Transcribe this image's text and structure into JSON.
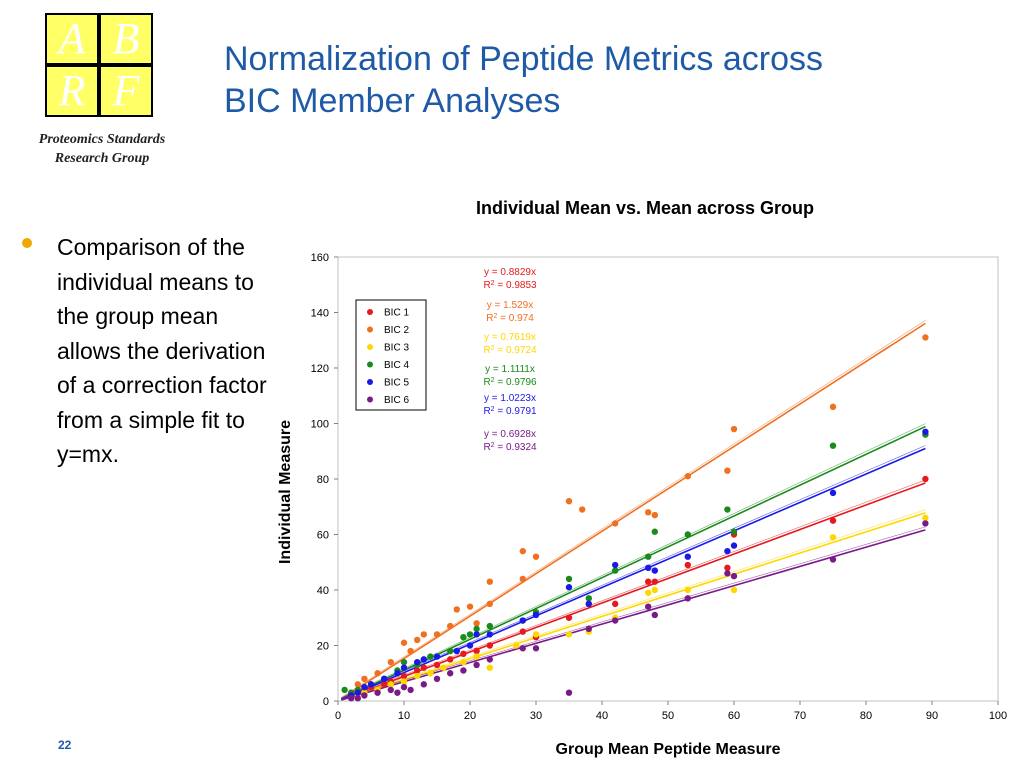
{
  "logo": {
    "letters": [
      "A",
      "B",
      "R",
      "F"
    ],
    "caption": [
      "Proteomics Standards",
      "Research Group"
    ]
  },
  "slide": {
    "title_lines": [
      "Normalization of Peptide Metrics across",
      "BIC Member Analyses"
    ],
    "bullet": "Comparison of the individual means to the group mean allows the derivation of a correction factor from a simple fit to y=mx.",
    "page_number": "22",
    "bullet_color": "#f0a800",
    "title_color": "#1f5aa6"
  },
  "chart_data": {
    "type": "scatter",
    "title": "Individual Mean vs. Mean across Group",
    "xlabel": "Group Mean Peptide Measure",
    "ylabel": "Individual Measure",
    "xlim": [
      0,
      100
    ],
    "ylim": [
      0,
      160
    ],
    "xticks": [
      "0",
      "10",
      "20",
      "30",
      "40",
      "50",
      "60",
      "70",
      "80",
      "90",
      "100"
    ],
    "yticks": [
      "0",
      "20",
      "40",
      "60",
      "80",
      "100",
      "120",
      "140",
      "160"
    ],
    "grid": false,
    "legend_position": "top-left",
    "series": [
      {
        "name": "BIC 1",
        "color": "#e41a1c",
        "slope": 0.8829,
        "eq": "y = 0.8829x",
        "r2": "0.9853",
        "points": [
          [
            2,
            2
          ],
          [
            3,
            3
          ],
          [
            4,
            4
          ],
          [
            5,
            5
          ],
          [
            7,
            6
          ],
          [
            8,
            7
          ],
          [
            10,
            9
          ],
          [
            12,
            11
          ],
          [
            13,
            12
          ],
          [
            15,
            13
          ],
          [
            17,
            15
          ],
          [
            19,
            17
          ],
          [
            21,
            18
          ],
          [
            23,
            20
          ],
          [
            28,
            25
          ],
          [
            30,
            23
          ],
          [
            35,
            30
          ],
          [
            38,
            35
          ],
          [
            42,
            35
          ],
          [
            47,
            43
          ],
          [
            48,
            43
          ],
          [
            53,
            49
          ],
          [
            59,
            48
          ],
          [
            60,
            60
          ],
          [
            75,
            65
          ],
          [
            89,
            80
          ]
        ]
      },
      {
        "name": "BIC 2",
        "color": "#f07020",
        "slope": 1.529,
        "eq": "y = 1.529x",
        "r2": "0.974",
        "points": [
          [
            2,
            3
          ],
          [
            3,
            6
          ],
          [
            4,
            8
          ],
          [
            6,
            10
          ],
          [
            8,
            14
          ],
          [
            10,
            21
          ],
          [
            11,
            18
          ],
          [
            12,
            22
          ],
          [
            13,
            24
          ],
          [
            15,
            24
          ],
          [
            17,
            27
          ],
          [
            18,
            33
          ],
          [
            20,
            34
          ],
          [
            21,
            28
          ],
          [
            23,
            43
          ],
          [
            23,
            35
          ],
          [
            28,
            44
          ],
          [
            28,
            54
          ],
          [
            30,
            52
          ],
          [
            35,
            72
          ],
          [
            37,
            69
          ],
          [
            42,
            64
          ],
          [
            47,
            68
          ],
          [
            48,
            67
          ],
          [
            53,
            81
          ],
          [
            59,
            83
          ],
          [
            60,
            98
          ],
          [
            75,
            106
          ],
          [
            89,
            131
          ]
        ]
      },
      {
        "name": "BIC 3",
        "color": "#ffd700",
        "slope": 0.7619,
        "eq": "y = 0.7619x",
        "r2": "0.9724",
        "points": [
          [
            2,
            1
          ],
          [
            3,
            2
          ],
          [
            4,
            3
          ],
          [
            6,
            4
          ],
          [
            8,
            6
          ],
          [
            10,
            7
          ],
          [
            12,
            9
          ],
          [
            14,
            10
          ],
          [
            16,
            12
          ],
          [
            19,
            14
          ],
          [
            21,
            16
          ],
          [
            23,
            12
          ],
          [
            27,
            20
          ],
          [
            30,
            24
          ],
          [
            35,
            24
          ],
          [
            38,
            25
          ],
          [
            42,
            30
          ],
          [
            47,
            39
          ],
          [
            48,
            40
          ],
          [
            53,
            40
          ],
          [
            60,
            40
          ],
          [
            75,
            59
          ],
          [
            89,
            66
          ]
        ]
      },
      {
        "name": "BIC 4",
        "color": "#1a8a1a",
        "slope": 1.1111,
        "eq": "y = 1.1111x",
        "r2": "0.9796",
        "points": [
          [
            1,
            4
          ],
          [
            2,
            3
          ],
          [
            3,
            4
          ],
          [
            5,
            6
          ],
          [
            7,
            8
          ],
          [
            9,
            11
          ],
          [
            10,
            14
          ],
          [
            12,
            13
          ],
          [
            14,
            16
          ],
          [
            17,
            18
          ],
          [
            19,
            23
          ],
          [
            20,
            24
          ],
          [
            21,
            26
          ],
          [
            23,
            27
          ],
          [
            28,
            29
          ],
          [
            30,
            32
          ],
          [
            35,
            44
          ],
          [
            38,
            37
          ],
          [
            42,
            47
          ],
          [
            47,
            52
          ],
          [
            48,
            61
          ],
          [
            53,
            60
          ],
          [
            59,
            69
          ],
          [
            60,
            61
          ],
          [
            75,
            92
          ],
          [
            89,
            96
          ]
        ]
      },
      {
        "name": "BIC 5",
        "color": "#1a1ae6",
        "slope": 1.0223,
        "eq": "y = 1.0223x",
        "r2": "0.9791",
        "points": [
          [
            2,
            2
          ],
          [
            3,
            3
          ],
          [
            4,
            5
          ],
          [
            5,
            6
          ],
          [
            7,
            8
          ],
          [
            9,
            10
          ],
          [
            10,
            12
          ],
          [
            12,
            14
          ],
          [
            13,
            15
          ],
          [
            15,
            16
          ],
          [
            18,
            18
          ],
          [
            20,
            20
          ],
          [
            21,
            24
          ],
          [
            23,
            24
          ],
          [
            28,
            29
          ],
          [
            30,
            31
          ],
          [
            35,
            41
          ],
          [
            38,
            35
          ],
          [
            42,
            49
          ],
          [
            47,
            48
          ],
          [
            48,
            47
          ],
          [
            53,
            52
          ],
          [
            59,
            54
          ],
          [
            60,
            56
          ],
          [
            75,
            75
          ],
          [
            89,
            97
          ]
        ]
      },
      {
        "name": "BIC 6",
        "color": "#7a1a8a",
        "slope": 0.6928,
        "eq": "y = 0.6928x",
        "r2": "0.9324",
        "points": [
          [
            2,
            1
          ],
          [
            3,
            1
          ],
          [
            4,
            2
          ],
          [
            6,
            3
          ],
          [
            8,
            4
          ],
          [
            9,
            3
          ],
          [
            10,
            5
          ],
          [
            11,
            4
          ],
          [
            13,
            6
          ],
          [
            15,
            8
          ],
          [
            17,
            10
          ],
          [
            19,
            11
          ],
          [
            21,
            13
          ],
          [
            23,
            15
          ],
          [
            28,
            19
          ],
          [
            30,
            19
          ],
          [
            35,
            3
          ],
          [
            38,
            26
          ],
          [
            42,
            29
          ],
          [
            47,
            34
          ],
          [
            48,
            31
          ],
          [
            53,
            37
          ],
          [
            59,
            46
          ],
          [
            60,
            45
          ],
          [
            75,
            51
          ],
          [
            89,
            64
          ]
        ]
      }
    ]
  }
}
